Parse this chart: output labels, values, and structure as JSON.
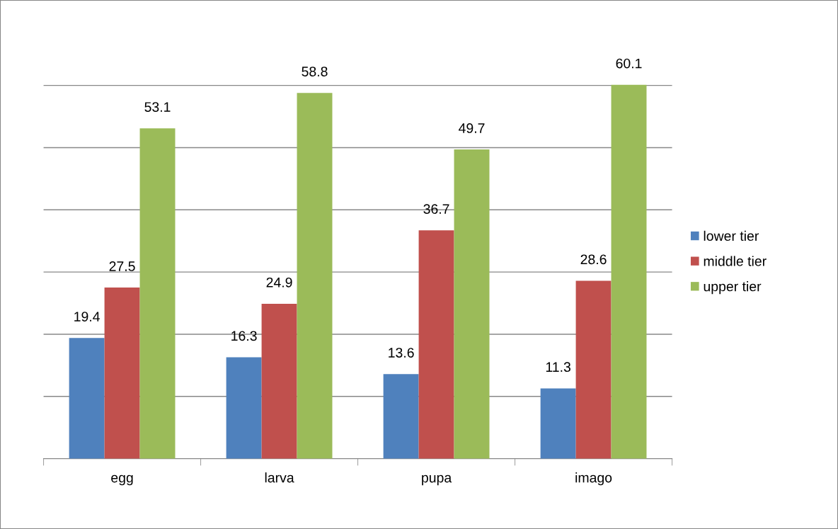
{
  "chart_data": {
    "type": "bar",
    "categories": [
      "egg",
      "larva",
      "pupa",
      "imago"
    ],
    "series": [
      {
        "name": "lower tier",
        "color": "#4f81bd",
        "values": [
          19.4,
          16.3,
          13.6,
          11.3
        ]
      },
      {
        "name": "middle tier",
        "color": "#c0504d",
        "values": [
          27.5,
          24.9,
          36.7,
          28.6
        ]
      },
      {
        "name": "upper tier",
        "color": "#9bbb59",
        "values": [
          53.1,
          58.8,
          49.7,
          60.1
        ]
      }
    ],
    "yticks": [
      {
        "value": 0,
        "label": null
      },
      {
        "value": 10,
        "label": null
      },
      {
        "value": 20,
        "label": null
      },
      {
        "value": 30,
        "label": null
      },
      {
        "value": 40,
        "label": null
      },
      {
        "value": 50,
        "label": null
      },
      {
        "value": 60,
        "label": null
      }
    ],
    "tick_labels": "x",
    "grid": "y",
    "legend": "right",
    "data_labels": true
  }
}
